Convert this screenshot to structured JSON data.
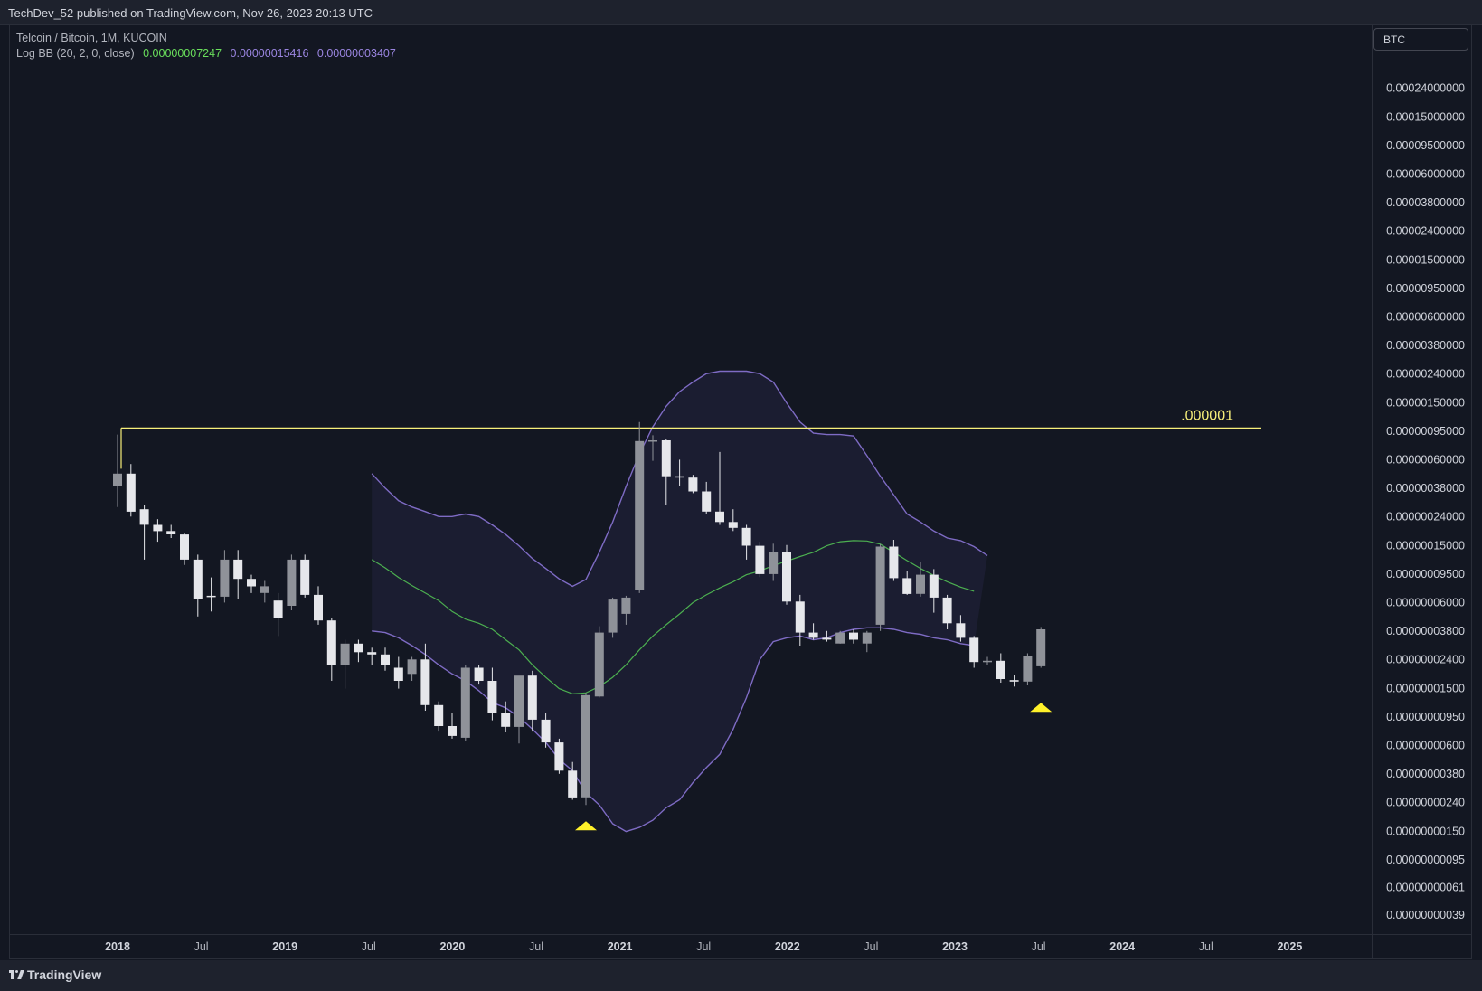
{
  "header": {
    "published": "TechDev_52 published on TradingView.com, Nov 26, 2023 20:13 UTC"
  },
  "legend": {
    "symbol": "Telcoin / Bitcoin, 1M, KUCOIN",
    "indicator": "Log BB (20, 2, 0, close)",
    "basis": "0.00000007247",
    "upper": "0.00000015416",
    "lower": "0.00000003407"
  },
  "currency": "BTC",
  "footer": {
    "brand": "TradingView"
  },
  "colors": {
    "background": "#131722",
    "candle_up": "#8f9299",
    "candle_down": "#e6e7eb",
    "band": "#7e6bc4",
    "basis": "#4caf50",
    "resistance": "#f7ef7a",
    "marker": "#fff12a"
  },
  "chart_data": {
    "type": "candlestick",
    "title": "Telcoin / Bitcoin, 1M, KUCOIN",
    "y_scale": "log",
    "y_axis_labels": [
      "0.00024000000",
      "0.00015000000",
      "0.00009500000",
      "0.00006000000",
      "0.00003800000",
      "0.00002400000",
      "0.00001500000",
      "0.00000950000",
      "0.00000600000",
      "0.00000380000",
      "0.00000240000",
      "0.00000150000",
      "0.00000095000",
      "0.00000060000",
      "0.00000038000",
      "0.00000024000",
      "0.00000015000",
      "0.00000009500",
      "0.00000006000",
      "0.00000003800",
      "0.00000002400",
      "0.00000001500",
      "0.00000000950",
      "0.00000000600",
      "0.00000000380",
      "0.00000000240",
      "0.00000000150",
      "0.00000000095",
      "0.00000000061",
      "0.00000000039"
    ],
    "x_axis_labels": [
      {
        "label": "2018",
        "bold": true
      },
      {
        "label": "Jul",
        "bold": false
      },
      {
        "label": "2019",
        "bold": true
      },
      {
        "label": "Jul",
        "bold": false
      },
      {
        "label": "2020",
        "bold": true
      },
      {
        "label": "Jul",
        "bold": false
      },
      {
        "label": "2021",
        "bold": true
      },
      {
        "label": "Jul",
        "bold": false
      },
      {
        "label": "2022",
        "bold": true
      },
      {
        "label": "Jul",
        "bold": false
      },
      {
        "label": "2023",
        "bold": true
      },
      {
        "label": "Jul",
        "bold": false
      },
      {
        "label": "2024",
        "bold": true
      },
      {
        "label": "Jul",
        "bold": false
      },
      {
        "label": "2025",
        "bold": true
      }
    ],
    "resistance": {
      "label": ".000001",
      "value": 1e-06
    },
    "candles": [
      {
        "o": 3.9e-07,
        "h": 9e-07,
        "l": 2.8e-07,
        "c": 4.8e-07
      },
      {
        "o": 4.8e-07,
        "h": 5.6e-07,
        "l": 2.4e-07,
        "c": 2.6e-07
      },
      {
        "o": 2.7e-07,
        "h": 2.9e-07,
        "l": 1.2e-07,
        "c": 2.1e-07
      },
      {
        "o": 2.1e-07,
        "h": 2.3e-07,
        "l": 1.6e-07,
        "c": 1.9e-07
      },
      {
        "o": 1.9e-07,
        "h": 2.1e-07,
        "l": 1.7e-07,
        "c": 1.8e-07
      },
      {
        "o": 1.8e-07,
        "h": 1.85e-07,
        "l": 1.1e-07,
        "c": 1.2e-07
      },
      {
        "o": 1.2e-07,
        "h": 1.3e-07,
        "l": 4.8e-08,
        "c": 6.4e-08
      },
      {
        "o": 6.7e-08,
        "h": 9e-08,
        "l": 5.2e-08,
        "c": 6.6e-08
      },
      {
        "o": 6.6e-08,
        "h": 1.4e-07,
        "l": 6e-08,
        "c": 1.2e-07
      },
      {
        "o": 1.2e-07,
        "h": 1.4e-07,
        "l": 6.4e-08,
        "c": 8.8e-08
      },
      {
        "o": 8.8e-08,
        "h": 9.4e-08,
        "l": 7e-08,
        "c": 7.8e-08
      },
      {
        "o": 7e-08,
        "h": 8.5e-08,
        "l": 6e-08,
        "c": 7.8e-08
      },
      {
        "o": 6.2e-08,
        "h": 7e-08,
        "l": 3.5e-08,
        "c": 4.7e-08
      },
      {
        "o": 5.7e-08,
        "h": 1.3e-07,
        "l": 5.3e-08,
        "c": 1.2e-07
      },
      {
        "o": 1.2e-07,
        "h": 1.3e-07,
        "l": 6.5e-08,
        "c": 6.8e-08
      },
      {
        "o": 6.8e-08,
        "h": 7.8e-08,
        "l": 4.2e-08,
        "c": 4.5e-08
      },
      {
        "o": 4.5e-08,
        "h": 4.7e-08,
        "l": 1.7e-08,
        "c": 2.2e-08
      },
      {
        "o": 2.2e-08,
        "h": 3.3e-08,
        "l": 1.5e-08,
        "c": 3.1e-08
      },
      {
        "o": 3.1e-08,
        "h": 3.3e-08,
        "l": 2.3e-08,
        "c": 2.7e-08
      },
      {
        "o": 2.7e-08,
        "h": 2.9e-08,
        "l": 2.2e-08,
        "c": 2.6e-08
      },
      {
        "o": 2.6e-08,
        "h": 2.9e-08,
        "l": 2e-08,
        "c": 2.2e-08
      },
      {
        "o": 2.1e-08,
        "h": 2.5e-08,
        "l": 1.5e-08,
        "c": 1.7e-08
      },
      {
        "o": 1.9e-08,
        "h": 2.5e-08,
        "l": 1.7e-08,
        "c": 2.4e-08
      },
      {
        "o": 2.4e-08,
        "h": 3.1e-08,
        "l": 1.05e-08,
        "c": 1.15e-08
      },
      {
        "o": 1.15e-08,
        "h": 1.22e-08,
        "l": 7.5e-09,
        "c": 8.2e-09
      },
      {
        "o": 8.2e-09,
        "h": 1.01e-08,
        "l": 6.7e-09,
        "c": 7e-09
      },
      {
        "o": 6.8e-09,
        "h": 2.2e-08,
        "l": 6.4e-09,
        "c": 2.1e-08
      },
      {
        "o": 2.1e-08,
        "h": 2.2e-08,
        "l": 1.6e-08,
        "c": 1.7e-08
      },
      {
        "o": 1.7e-08,
        "h": 2.1e-08,
        "l": 9e-09,
        "c": 1.02e-08
      },
      {
        "o": 1.02e-08,
        "h": 1.22e-08,
        "l": 7.4e-09,
        "c": 8.1e-09
      },
      {
        "o": 8.1e-09,
        "h": 1.12e-08,
        "l": 6.2e-09,
        "c": 1.85e-08
      },
      {
        "o": 1.85e-08,
        "h": 2e-08,
        "l": 7.5e-09,
        "c": 9.1e-09
      },
      {
        "o": 9.1e-09,
        "h": 1.02e-08,
        "l": 5.8e-09,
        "c": 6.3e-09
      },
      {
        "o": 6.3e-09,
        "h": 6.7e-09,
        "l": 3.8e-09,
        "c": 4e-09
      },
      {
        "o": 4e-09,
        "h": 4.6e-09,
        "l": 2.5e-09,
        "c": 2.6e-09
      },
      {
        "o": 2.6e-09,
        "h": 1.4e-08,
        "l": 2.3e-09,
        "c": 1.35e-08
      },
      {
        "o": 1.32e-08,
        "h": 4.1e-08,
        "l": 1.3e-08,
        "c": 3.7e-08
      },
      {
        "o": 3.7e-08,
        "h": 6.5e-08,
        "l": 3.4e-08,
        "c": 6.3e-08
      },
      {
        "o": 5e-08,
        "h": 6.7e-08,
        "l": 4.2e-08,
        "c": 6.5e-08
      },
      {
        "o": 7.4e-08,
        "h": 1.1e-06,
        "l": 7e-08,
        "c": 8.1e-07
      },
      {
        "o": 8.1e-07,
        "h": 8.9e-07,
        "l": 5.9e-07,
        "c": 8.2e-07
      },
      {
        "o": 8.2e-07,
        "h": 8.4e-07,
        "l": 2.9e-07,
        "c": 4.6e-07
      },
      {
        "o": 4.6e-07,
        "h": 6e-07,
        "l": 3.9e-07,
        "c": 4.5e-07
      },
      {
        "o": 4.5e-07,
        "h": 4.7e-07,
        "l": 3.5e-07,
        "c": 3.6e-07
      },
      {
        "o": 3.6e-07,
        "h": 4.2e-07,
        "l": 2.5e-07,
        "c": 2.6e-07
      },
      {
        "o": 2.6e-07,
        "h": 6.8e-07,
        "l": 2.1e-07,
        "c": 2.2e-07
      },
      {
        "o": 2.2e-07,
        "h": 2.7e-07,
        "l": 1.9e-07,
        "c": 2e-07
      },
      {
        "o": 2e-07,
        "h": 2.1e-07,
        "l": 1.2e-07,
        "c": 1.5e-07
      },
      {
        "o": 1.5e-07,
        "h": 1.6e-07,
        "l": 9.05e-08,
        "c": 9.5e-08
      },
      {
        "o": 9.5e-08,
        "h": 1.55e-07,
        "l": 8.5e-08,
        "c": 1.36e-07
      },
      {
        "o": 1.36e-07,
        "h": 1.52e-07,
        "l": 5.8e-08,
        "c": 6.1e-08
      },
      {
        "o": 6.1e-08,
        "h": 6.8e-08,
        "l": 3e-08,
        "c": 3.7e-08
      },
      {
        "o": 3.7e-08,
        "h": 4.3e-08,
        "l": 3.3e-08,
        "c": 3.4e-08
      },
      {
        "o": 3.4e-08,
        "h": 3.8e-08,
        "l": 3.2e-08,
        "c": 3.3e-08
      },
      {
        "o": 3.1e-08,
        "h": 3.8e-08,
        "l": 3.1e-08,
        "c": 3.7e-08
      },
      {
        "o": 3.7e-08,
        "h": 3.9e-08,
        "l": 3.1e-08,
        "c": 3.3e-08
      },
      {
        "o": 3.1e-08,
        "h": 3.8e-08,
        "l": 2.7e-08,
        "c": 3.7e-08
      },
      {
        "o": 4.2e-08,
        "h": 1.54e-07,
        "l": 3.8e-08,
        "c": 1.48e-07
      },
      {
        "o": 1.48e-07,
        "h": 1.65e-07,
        "l": 8.5e-08,
        "c": 8.9e-08
      },
      {
        "o": 8.9e-08,
        "h": 1e-07,
        "l": 6.8e-08,
        "c": 6.9e-08
      },
      {
        "o": 6.9e-08,
        "h": 1.16e-07,
        "l": 6.6e-08,
        "c": 9.4e-08
      },
      {
        "o": 9.4e-08,
        "h": 1.03e-07,
        "l": 5.1e-08,
        "c": 6.5e-08
      },
      {
        "o": 6.5e-08,
        "h": 6.8e-08,
        "l": 3.9e-08,
        "c": 4.3e-08
      },
      {
        "o": 4.3e-08,
        "h": 4.9e-08,
        "l": 3.2e-08,
        "c": 3.4e-08
      },
      {
        "o": 3.4e-08,
        "h": 3.5e-08,
        "l": 2.1e-08,
        "c": 2.3e-08
      },
      {
        "o": 2.3e-08,
        "h": 2.5e-08,
        "l": 2.2e-08,
        "c": 2.35e-08
      },
      {
        "o": 2.35e-08,
        "h": 2.65e-08,
        "l": 1.65e-08,
        "c": 1.75e-08
      },
      {
        "o": 1.72e-08,
        "h": 1.88e-08,
        "l": 1.55e-08,
        "c": 1.68e-08
      },
      {
        "o": 1.68e-08,
        "h": 2.65e-08,
        "l": 1.58e-08,
        "c": 2.55e-08
      },
      {
        "o": 2.15e-08,
        "h": 4.05e-08,
        "l": 2.1e-08,
        "c": 3.9e-08
      }
    ],
    "basis_line": [
      1.2e-07,
      1.05e-07,
      9e-08,
      7.9e-08,
      7e-08,
      6.2e-08,
      5.2e-08,
      4.6e-08,
      4.3e-08,
      3.9e-08,
      3.3e-08,
      2.8e-08,
      2.2e-08,
      1.8e-08,
      1.5e-08,
      1.38e-08,
      1.4e-08,
      1.55e-08,
      1.8e-08,
      2.2e-08,
      2.8e-08,
      3.5e-08,
      4.2e-08,
      5e-08,
      6e-08,
      6.8e-08,
      7.6e-08,
      8.4e-08,
      9.4e-08,
      1e-07,
      1.09e-07,
      1.17e-07,
      1.26e-07,
      1.35e-07,
      1.5e-07,
      1.6e-07,
      1.63e-07,
      1.62e-07,
      1.54e-07,
      1.35e-07,
      1.18e-07,
      1.04e-07,
      9.3e-08,
      8.4e-08,
      7.7e-08,
      7.2e-08
    ],
    "upper_band": [
      4.8e-07,
      3.8e-07,
      3.1e-07,
      2.8e-07,
      2.6e-07,
      2.4e-07,
      2.4e-07,
      2.5e-07,
      2.4e-07,
      2.1e-07,
      1.8e-07,
      1.5e-07,
      1.22e-07,
      1.04e-07,
      8.8e-08,
      7.8e-08,
      8.7e-08,
      1.35e-07,
      2.2e-07,
      3.9e-07,
      6.6e-07,
      1.02e-06,
      1.42e-06,
      1.8e-06,
      2.1e-06,
      2.4e-06,
      2.5e-06,
      2.5e-06,
      2.5e-06,
      2.4e-06,
      2.1e-06,
      1.5e-06,
      1.1e-06,
      9.2e-07,
      9e-07,
      9e-07,
      8.8e-07,
      6.4e-07,
      4.6e-07,
      3.4e-07,
      2.5e-07,
      2.2e-07,
      1.9e-07,
      1.7e-07,
      1.63e-07,
      1.48e-07,
      1.28e-07
    ],
    "lower_band": [
      3.8e-08,
      3.7e-08,
      3.4e-08,
      3e-08,
      2.6e-08,
      2.2e-08,
      1.9e-08,
      1.7e-08,
      1.45e-08,
      1.2e-08,
      1.1e-08,
      9.5e-09,
      7.8e-09,
      6.3e-09,
      4.8e-09,
      4e-09,
      2.8e-09,
      2.3e-09,
      1.7e-09,
      1.5e-09,
      1.6e-09,
      1.8e-09,
      2.2e-09,
      2.5e-09,
      3.3e-09,
      4.2e-09,
      5.2e-09,
      7.8e-09,
      1.3e-08,
      2.4e-08,
      3.2e-08,
      3.4e-08,
      3.5e-08,
      3.3e-08,
      3.4e-08,
      3.7e-08,
      3.9e-08,
      4e-08,
      4e-08,
      3.9e-08,
      3.7e-08,
      3.6e-08,
      3.4e-08,
      3.3e-08,
      3.1e-08,
      3e-08
    ]
  }
}
